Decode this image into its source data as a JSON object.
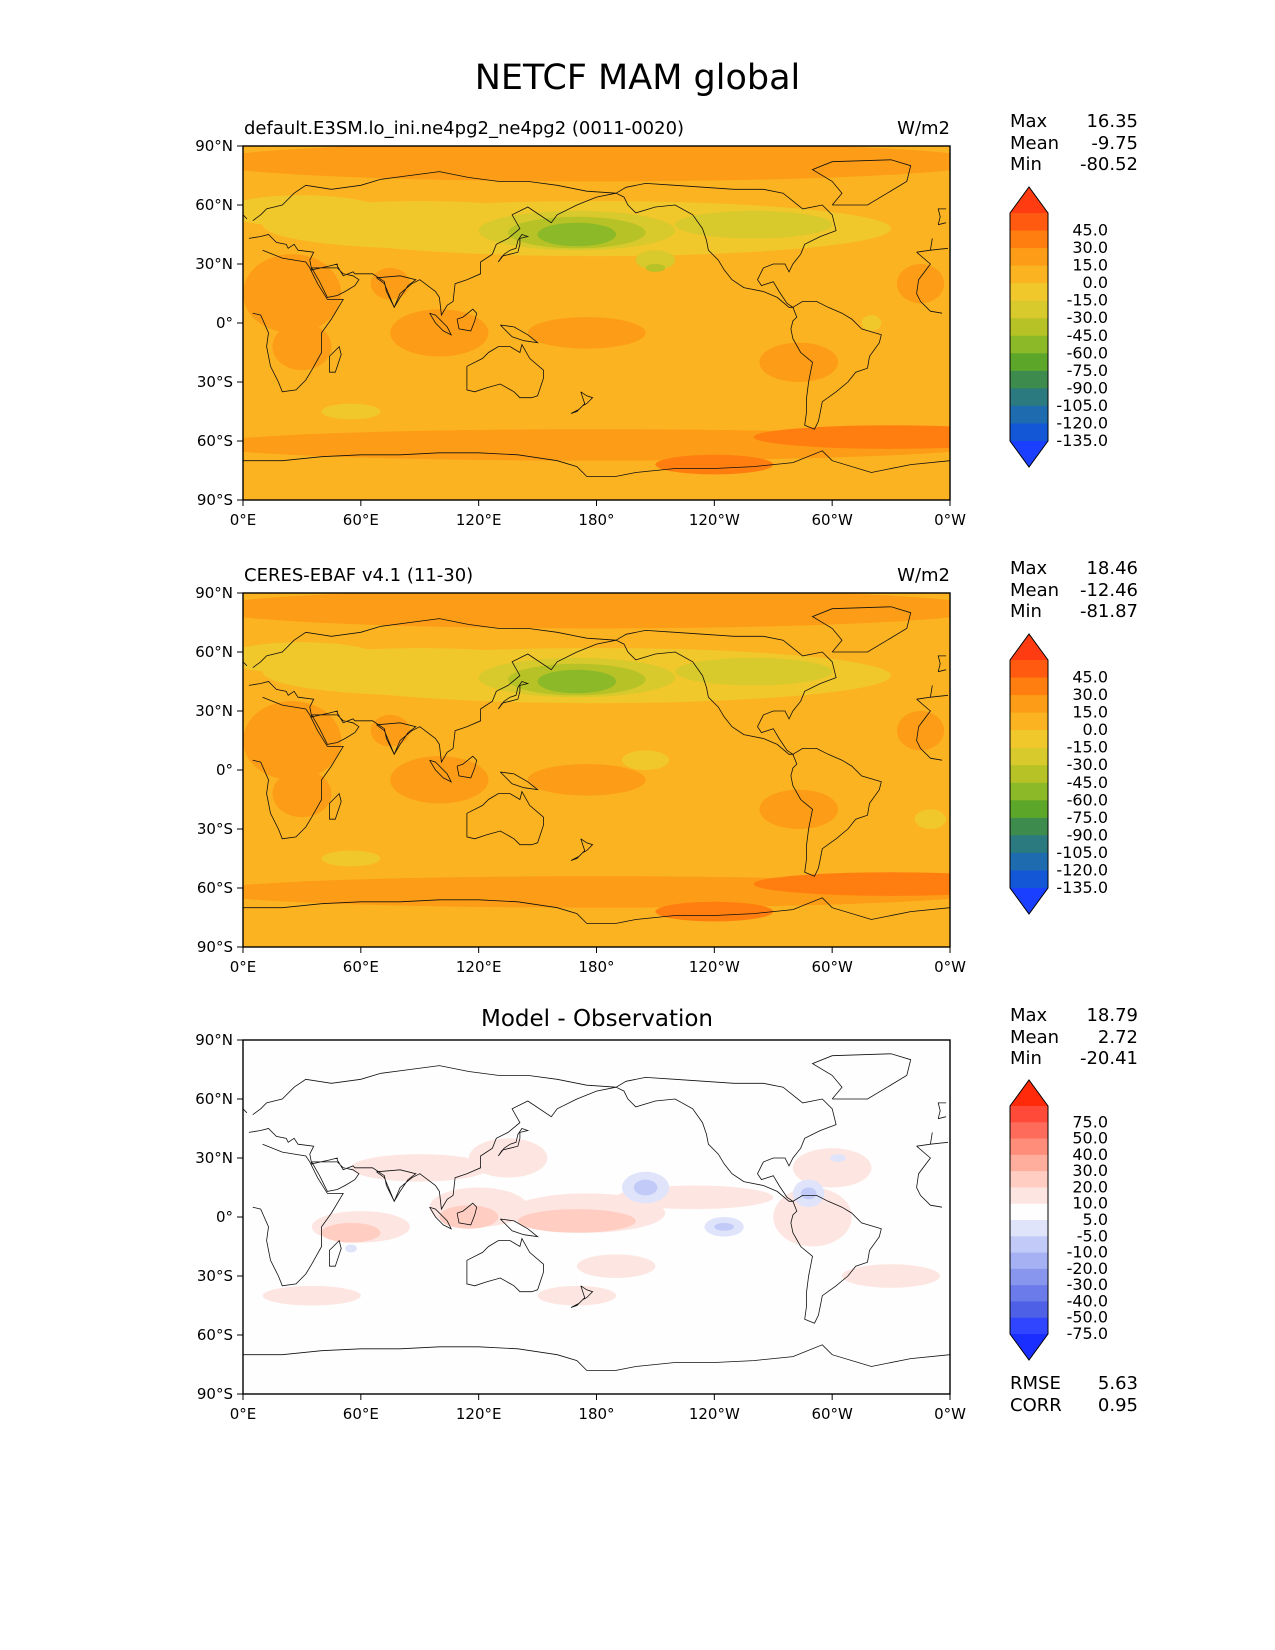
{
  "figure": {
    "title": "NETCF MAM global"
  },
  "axes": {
    "lat_ticks": [
      "90°N",
      "60°N",
      "30°N",
      "0°",
      "30°S",
      "60°S",
      "90°S"
    ],
    "lon_ticks": [
      "0°E",
      "60°E",
      "120°E",
      "180°",
      "120°W",
      "60°W",
      "0°W"
    ]
  },
  "panels": [
    {
      "title_left": "default.E3SM.lo_ini.ne4pg2_ne4pg2 (0011-0020)",
      "title_right": "W/m2",
      "stats": {
        "max_label": "Max",
        "max": "16.35",
        "mean_label": "Mean",
        "mean": "-9.75",
        "min_label": "Min",
        "min": "-80.52"
      }
    },
    {
      "title_left": "CERES-EBAF v4.1 (11-30)",
      "title_right": "W/m2",
      "stats": {
        "max_label": "Max",
        "max": "18.46",
        "mean_label": "Mean",
        "mean": "-12.46",
        "min_label": "Min",
        "min": "-81.87"
      }
    },
    {
      "title_center": "Model - Observation",
      "stats": {
        "max_label": "Max",
        "max": "18.79",
        "mean_label": "Mean",
        "mean": "2.72",
        "min_label": "Min",
        "min": "-20.41"
      },
      "metrics": {
        "rmse_label": "RMSE",
        "rmse": "5.63",
        "corr_label": "CORR",
        "corr": "0.95"
      }
    }
  ],
  "colorbars": {
    "field": {
      "labels": [
        "45.0",
        "30.0",
        "15.0",
        "0.0",
        "-15.0",
        "-30.0",
        "-45.0",
        "-60.0",
        "-75.0",
        "-90.0",
        "-105.0",
        "-120.0",
        "-135.0"
      ],
      "colors": [
        "#ff3b12",
        "#ff5a0f",
        "#ff7e0f",
        "#fd9c16",
        "#fcb321",
        "#f1c82b",
        "#d8c92c",
        "#b6c226",
        "#8cb927",
        "#5ca72a",
        "#3d8c4e",
        "#2a7a80",
        "#1f6bb0",
        "#1457d6",
        "#1b3fff"
      ]
    },
    "diff": {
      "labels": [
        "75.0",
        "50.0",
        "40.0",
        "30.0",
        "20.0",
        "10.0",
        "5.0",
        "-5.0",
        "-10.0",
        "-20.0",
        "-30.0",
        "-40.0",
        "-50.0",
        "-75.0"
      ],
      "colors": [
        "#ff2a0a",
        "#ff4a3a",
        "#ff6b5a",
        "#ff8d7a",
        "#ffae9e",
        "#ffcdc2",
        "#fde6e2",
        "#fefefe",
        "#dfe4fb",
        "#c2cbf7",
        "#a5b1f2",
        "#8896ee",
        "#6b7bea",
        "#4e60e6",
        "#2f45ff",
        "#1a2eff"
      ]
    }
  }
}
